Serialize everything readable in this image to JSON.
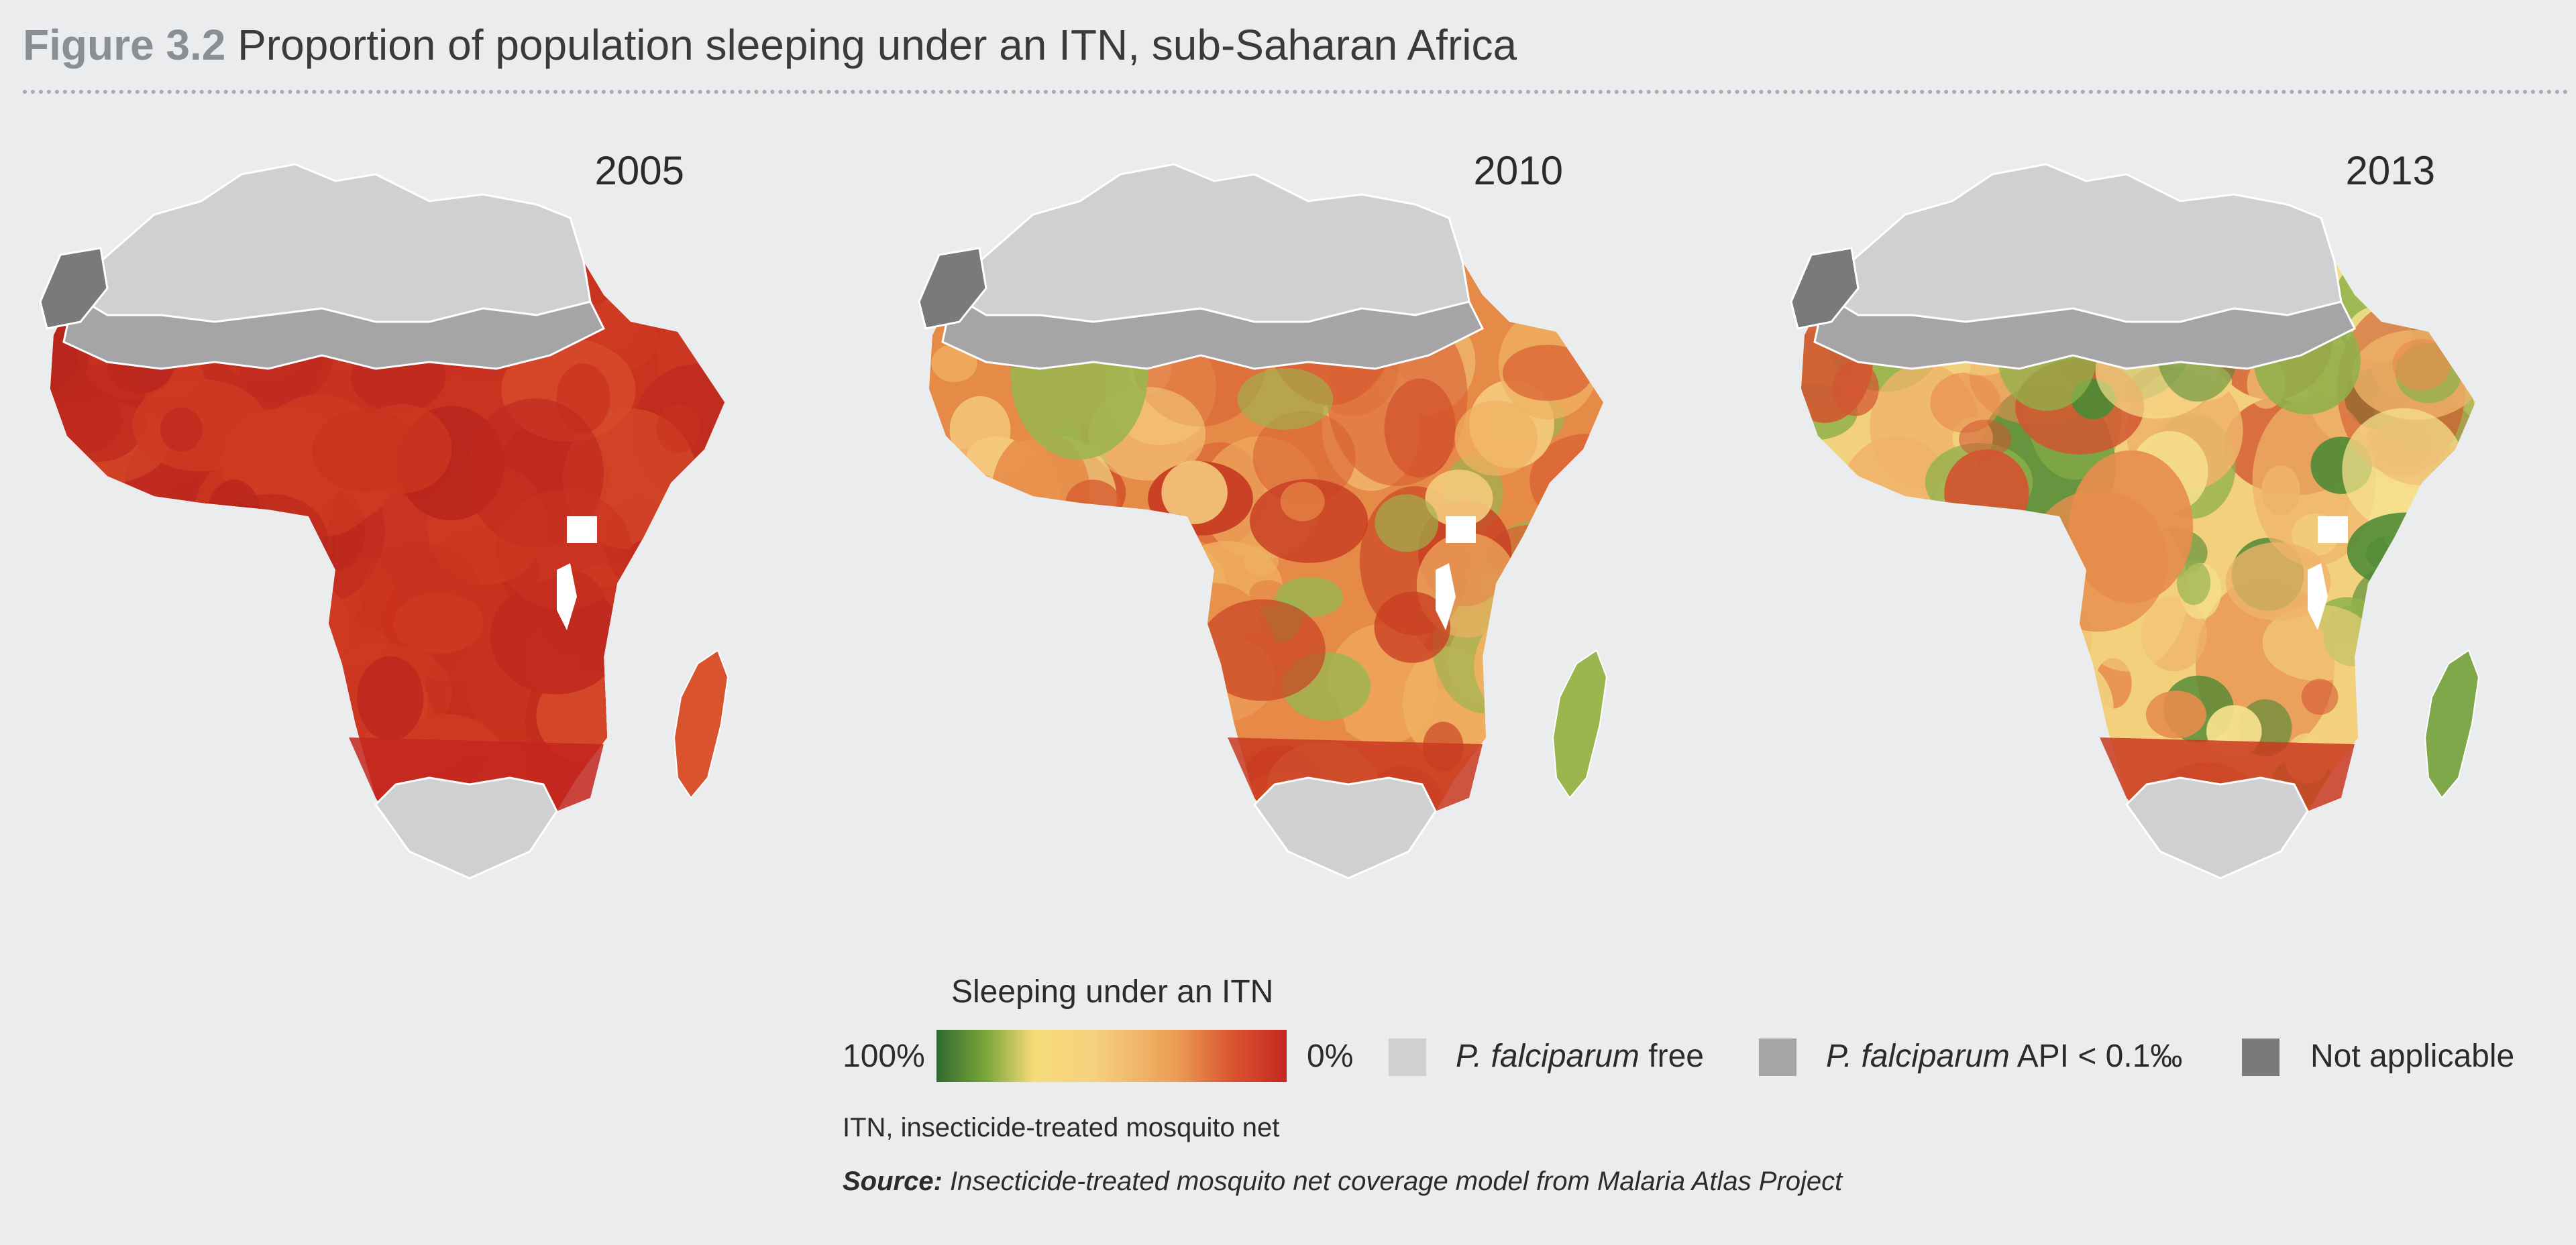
{
  "figure": {
    "number": "Figure 3.2",
    "title": "Proportion of population sleeping under an ITN, sub-Saharan Africa"
  },
  "maps": [
    {
      "year": "2005",
      "level": "low"
    },
    {
      "year": "2010",
      "level": "medium"
    },
    {
      "year": "2013",
      "level": "high"
    }
  ],
  "legend": {
    "title": "Sleeping under an ITN",
    "gradient_left_label": "100%",
    "gradient_right_label": "0%",
    "gradient_colors": [
      "#2f6b2f",
      "#7aa53a",
      "#f6dc78",
      "#f5d07f",
      "#ec9e56",
      "#d9532f",
      "#c4271f"
    ],
    "categories": [
      {
        "label_italic": "P. falciparum",
        "label_rest": " free",
        "color": "#cfd0d2"
      },
      {
        "label_italic": "P. falciparum",
        "label_rest": " API < 0.1‰",
        "color": "#a5a5a7"
      },
      {
        "label_italic": "",
        "label_rest": "Not applicable",
        "color": "#7a7a7c"
      }
    ]
  },
  "footnote": "ITN, insecticide-treated mosquito net",
  "source": {
    "label": "Source:",
    "text": " Insecticide-treated mosquito net coverage model from Malaria Atlas Project"
  }
}
